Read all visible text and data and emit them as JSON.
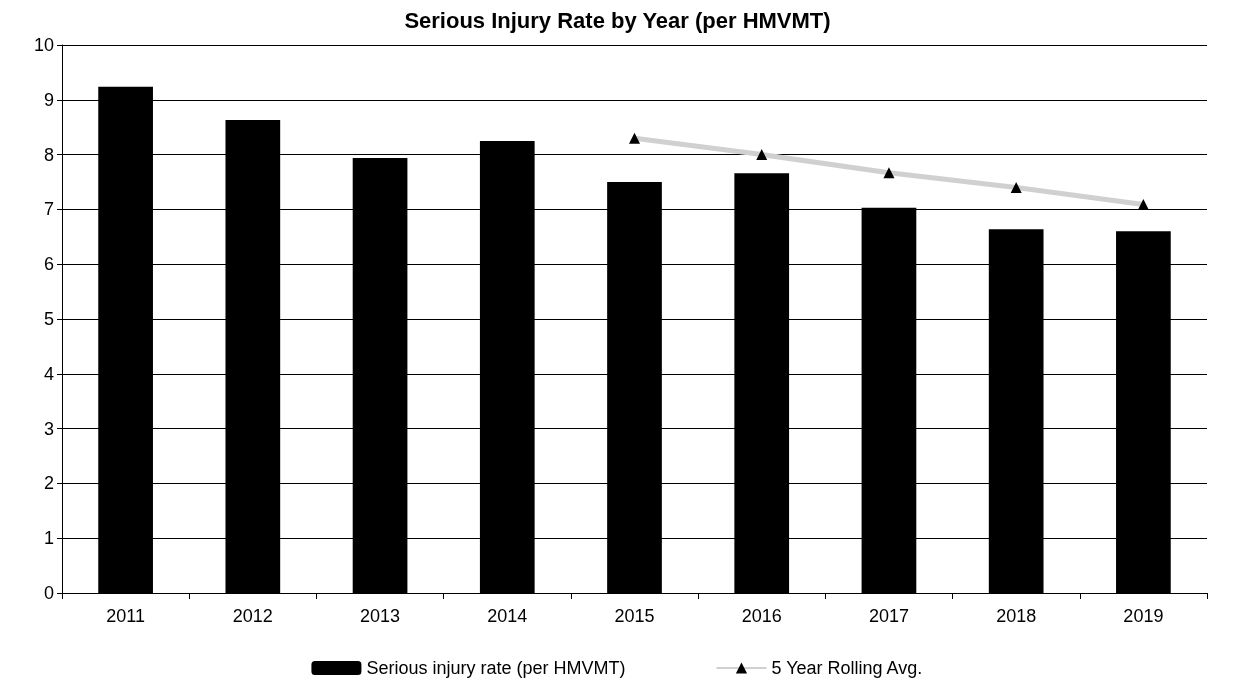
{
  "chart_data": {
    "type": "bar",
    "title": "Serious Injury Rate by Year (per HMVMT)",
    "categories": [
      "2011",
      "2012",
      "2013",
      "2014",
      "2015",
      "2016",
      "2017",
      "2018",
      "2019"
    ],
    "series": [
      {
        "name": "Serious injury rate (per HMVMT)",
        "color": "#000000",
        "values": [
          9.24,
          8.63,
          7.94,
          8.25,
          7.5,
          7.66,
          7.03,
          6.64,
          6.6
        ]
      },
      {
        "name": "5 Year Rolling Avg.",
        "type": "line",
        "color": "#d0d0d0",
        "marker": "triangle",
        "values": [
          null,
          null,
          null,
          null,
          8.3,
          8.0,
          7.67,
          7.4,
          7.09
        ]
      }
    ],
    "ylim": [
      0,
      10
    ],
    "yticks": [
      0,
      1,
      2,
      3,
      4,
      5,
      6,
      7,
      8,
      9,
      10
    ],
    "grid": "y",
    "legend": "bottom"
  }
}
